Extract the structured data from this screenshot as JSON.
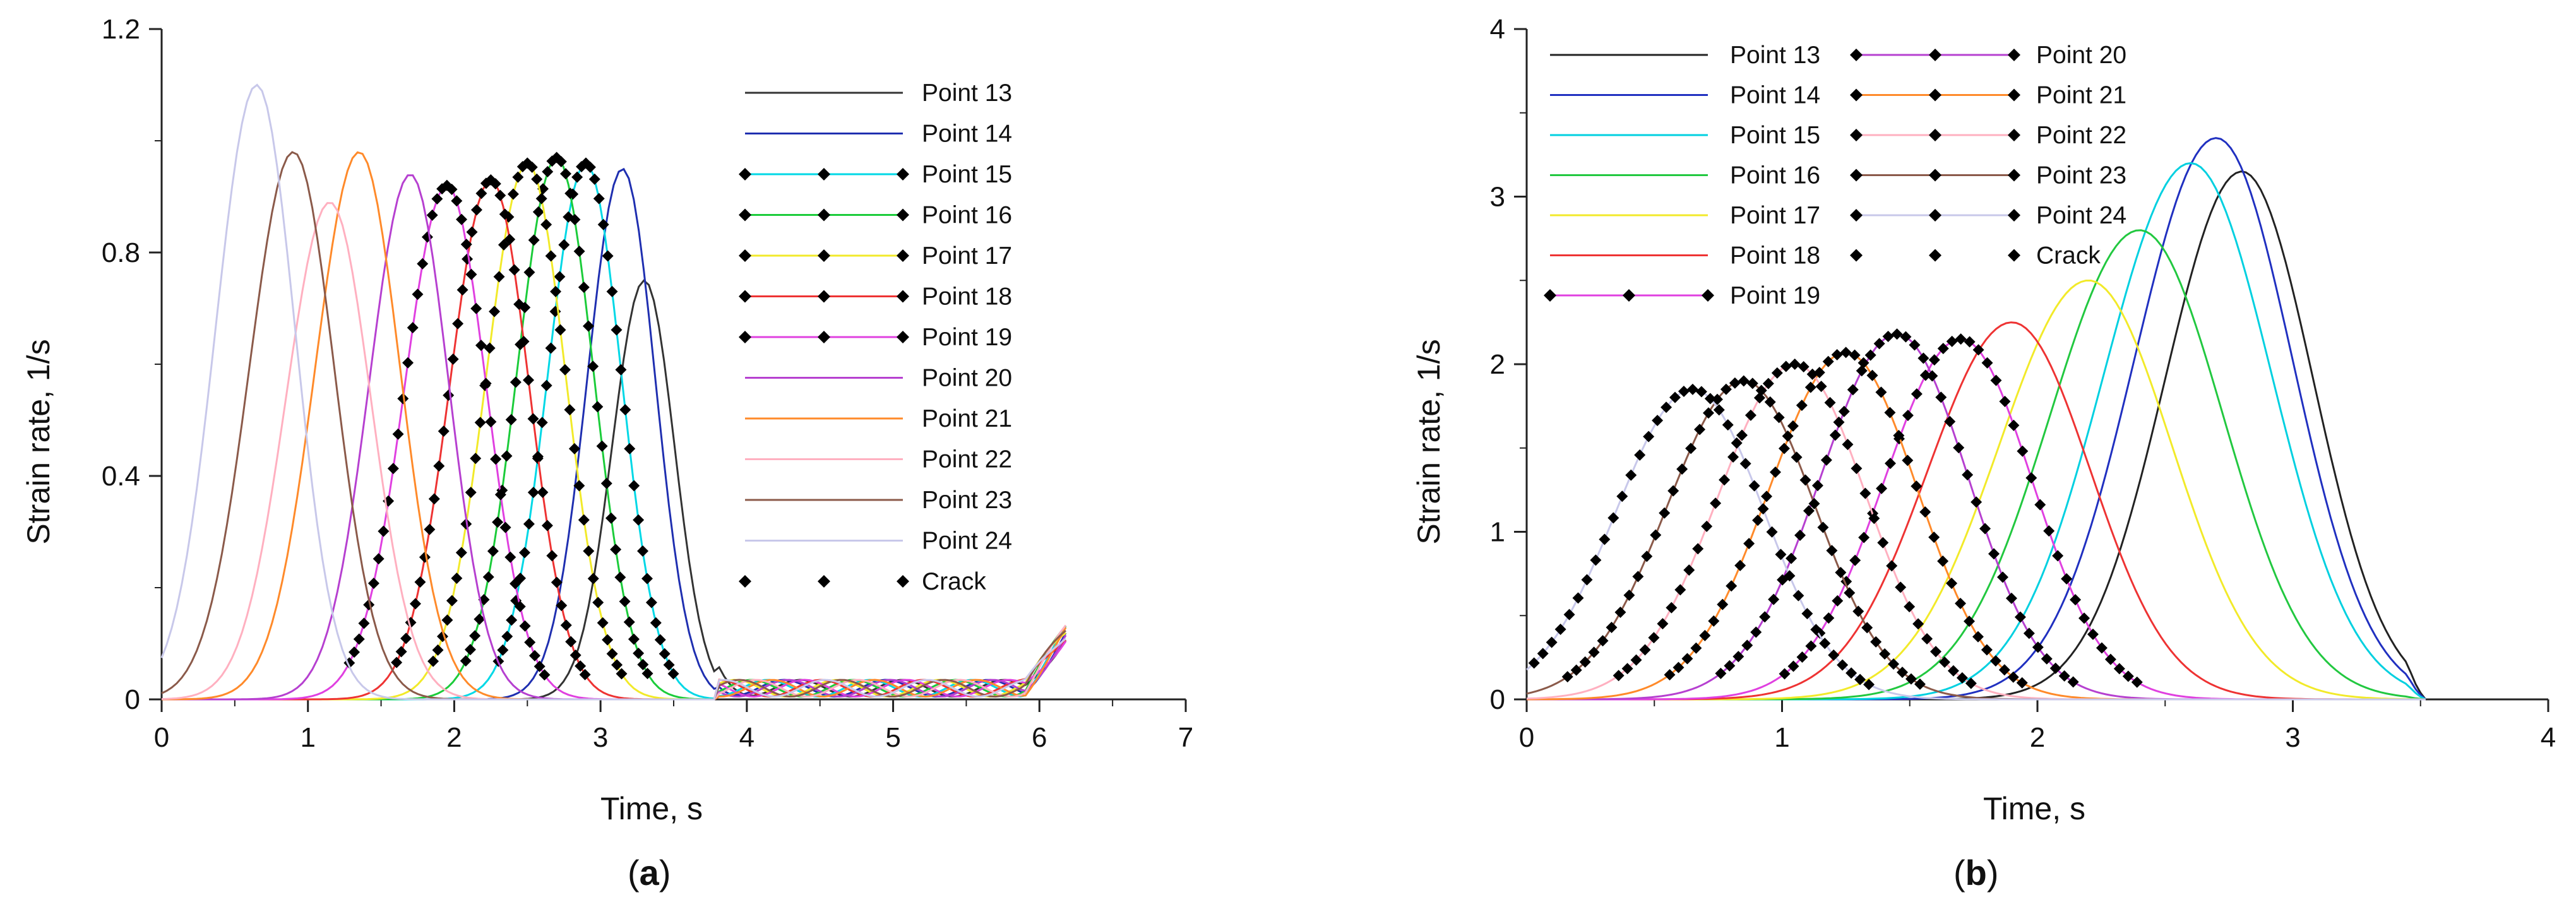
{
  "chart_data": [
    {
      "type": "line",
      "panel_label": {
        "open": "(",
        "letter": "a",
        "close": ")"
      },
      "xlabel": "Time, s",
      "ylabel": "Strain rate, 1/s",
      "xlim": [
        0,
        7
      ],
      "ylim": [
        0,
        1.2
      ],
      "xticks": [
        0,
        1,
        2,
        3,
        4,
        5,
        6,
        7
      ],
      "yticks": [
        0,
        0.4,
        0.8,
        1.2
      ],
      "ytick_labels": [
        "0",
        "0.4",
        "0.8",
        "1.2"
      ],
      "legend_position": "right-inside",
      "series": [
        {
          "name": "Point 13",
          "color": "#333333",
          "marker": false,
          "peak_t": 3.3,
          "peak": 0.75,
          "width": 0.22
        },
        {
          "name": "Point 14",
          "color": "#1f2fb0",
          "marker": false,
          "peak_t": 3.15,
          "peak": 0.95,
          "width": 0.24
        },
        {
          "name": "Point 15",
          "color": "#00d8e6",
          "marker": true,
          "peak_t": 2.9,
          "peak": 0.96,
          "width": 0.26
        },
        {
          "name": "Point 16",
          "color": "#1bcc3a",
          "marker": true,
          "peak_t": 2.7,
          "peak": 0.97,
          "width": 0.27
        },
        {
          "name": "Point 17",
          "color": "#f2ea2a",
          "marker": true,
          "peak_t": 2.5,
          "peak": 0.96,
          "width": 0.28
        },
        {
          "name": "Point 18",
          "color": "#ee3333",
          "marker": true,
          "peak_t": 2.25,
          "peak": 0.93,
          "width": 0.28
        },
        {
          "name": "Point 19",
          "color": "#e040e0",
          "marker": true,
          "peak_t": 1.95,
          "peak": 0.92,
          "width": 0.29
        },
        {
          "name": "Point 20",
          "color": "#b640d0",
          "marker": false,
          "peak_t": 1.7,
          "peak": 0.94,
          "width": 0.28
        },
        {
          "name": "Point 21",
          "color": "#ff8a2a",
          "marker": false,
          "peak_t": 1.35,
          "peak": 0.98,
          "width": 0.3
        },
        {
          "name": "Point 22",
          "color": "#ffb0c0",
          "marker": false,
          "peak_t": 1.15,
          "peak": 0.89,
          "width": 0.3
        },
        {
          "name": "Point 23",
          "color": "#8b5a4a",
          "marker": false,
          "peak_t": 0.9,
          "peak": 0.98,
          "width": 0.3
        },
        {
          "name": "Point 24",
          "color": "#c8c8ea",
          "marker": false,
          "peak_t": 0.65,
          "peak": 1.1,
          "width": 0.28
        },
        {
          "name": "Crack",
          "color": "#000000",
          "marker": true,
          "dots_only": true
        }
      ]
    },
    {
      "type": "line",
      "panel_label": {
        "open": "(",
        "letter": "b",
        "close": ")"
      },
      "xlabel": "Time, s",
      "ylabel": "Strain rate, 1/s",
      "xlim": [
        0,
        4
      ],
      "ylim": [
        0,
        4
      ],
      "xticks": [
        0,
        1,
        2,
        3,
        4
      ],
      "yticks": [
        0,
        1,
        2,
        3,
        4
      ],
      "ytick_labels": [
        "0",
        "1",
        "2",
        "3",
        "4"
      ],
      "legend_position": "top-left",
      "series": [
        {
          "name": "Point 13",
          "color": "#222222",
          "marker": false,
          "peak_t": 2.8,
          "peak": 3.15,
          "width": 0.3
        },
        {
          "name": "Point 14",
          "color": "#2030c0",
          "marker": false,
          "peak_t": 2.7,
          "peak": 3.35,
          "width": 0.32
        },
        {
          "name": "Point 15",
          "color": "#00d0e0",
          "marker": false,
          "peak_t": 2.6,
          "peak": 3.2,
          "width": 0.34
        },
        {
          "name": "Point 16",
          "color": "#22c840",
          "marker": false,
          "peak_t": 2.4,
          "peak": 2.8,
          "width": 0.35
        },
        {
          "name": "Point 17",
          "color": "#f2ea2a",
          "marker": false,
          "peak_t": 2.2,
          "peak": 2.5,
          "width": 0.35
        },
        {
          "name": "Point 18",
          "color": "#ee3333",
          "marker": false,
          "peak_t": 1.9,
          "peak": 2.25,
          "width": 0.33
        },
        {
          "name": "Point 19",
          "color": "#e040e0",
          "marker": true,
          "peak_t": 1.7,
          "peak": 2.15,
          "width": 0.3
        },
        {
          "name": "Point 20",
          "color": "#b640d0",
          "marker": true,
          "peak_t": 1.45,
          "peak": 2.18,
          "width": 0.3
        },
        {
          "name": "Point 21",
          "color": "#ff8a2a",
          "marker": true,
          "peak_t": 1.25,
          "peak": 2.07,
          "width": 0.3
        },
        {
          "name": "Point 22",
          "color": "#ffb0c0",
          "marker": true,
          "peak_t": 1.05,
          "peak": 2.0,
          "width": 0.3
        },
        {
          "name": "Point 23",
          "color": "#8b5a4a",
          "marker": true,
          "peak_t": 0.85,
          "peak": 1.9,
          "width": 0.3
        },
        {
          "name": "Point 24",
          "color": "#c8c8ea",
          "marker": true,
          "peak_t": 0.65,
          "peak": 1.85,
          "width": 0.3
        },
        {
          "name": "Crack",
          "color": "#000000",
          "marker": true,
          "dots_only": true
        }
      ]
    }
  ]
}
